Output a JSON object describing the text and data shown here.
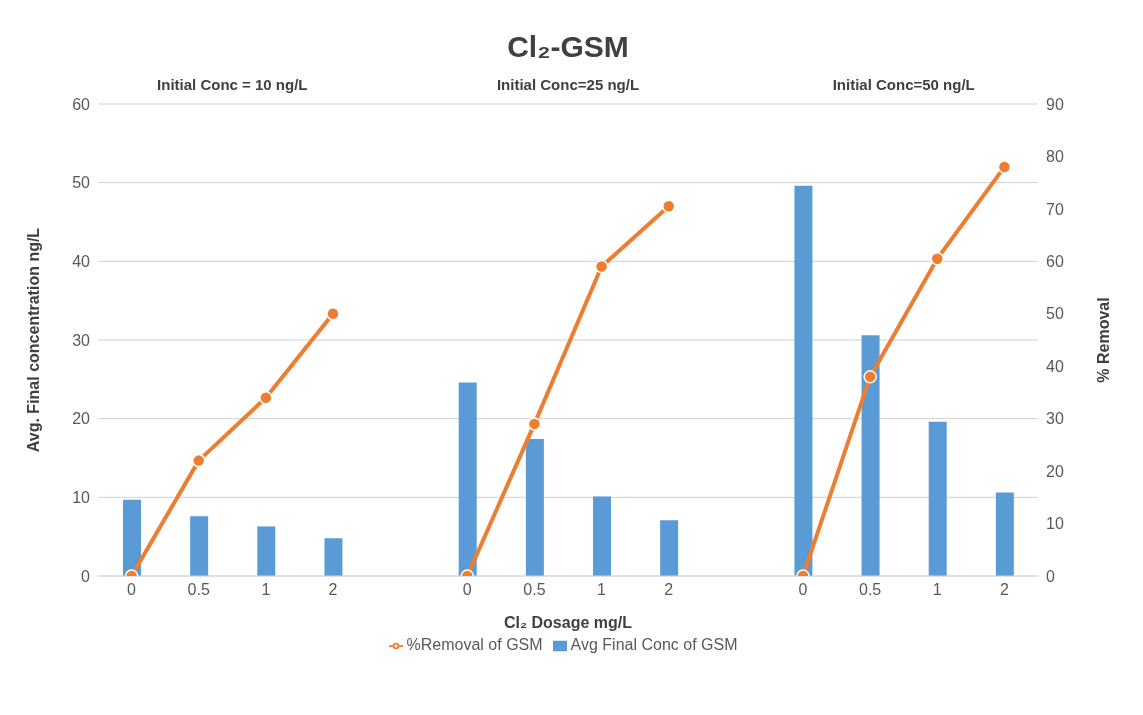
{
  "chart_data": {
    "type": "bar",
    "title": "Cl₂-GSM",
    "xlabel": "Cl₂ Dosage mg/L",
    "ylabel": "Avg. Final concentration ng/L",
    "y2label": "% Removal",
    "annotations": [
      "Initial Conc = 10 ng/L",
      "Initial Conc=25 ng/L",
      "Initial Conc=50 ng/L"
    ],
    "categories": [
      "0",
      "0.5",
      "1",
      "2",
      null,
      "0",
      "0.5",
      "1",
      "2",
      null,
      "0",
      "0.5",
      "1",
      "2"
    ],
    "series": [
      {
        "name": "Avg Final Conc of GSM",
        "color": "#5b9bd5",
        "values": [
          9.7,
          7.6,
          6.3,
          4.8,
          null,
          24.6,
          17.4,
          10.1,
          7.1,
          null,
          49.6,
          30.6,
          19.6,
          10.6
        ]
      },
      {
        "name": "%Removal of GSM",
        "type": "line",
        "axis": "y2",
        "color": "#ed7d31",
        "values": [
          0,
          22,
          34,
          50,
          null,
          0,
          29,
          59,
          70.5,
          null,
          0,
          38,
          60.5,
          78
        ]
      }
    ],
    "ylim": [
      0,
      60
    ],
    "yticks": [
      0,
      10,
      20,
      30,
      40,
      50,
      60
    ],
    "y2lim": [
      0,
      90
    ],
    "y2ticks": [
      0,
      10,
      20,
      30,
      40,
      50,
      60,
      70,
      80,
      90
    ],
    "grid": "y",
    "legend": "bottom",
    "marker": "circle",
    "line_style": "solid"
  }
}
